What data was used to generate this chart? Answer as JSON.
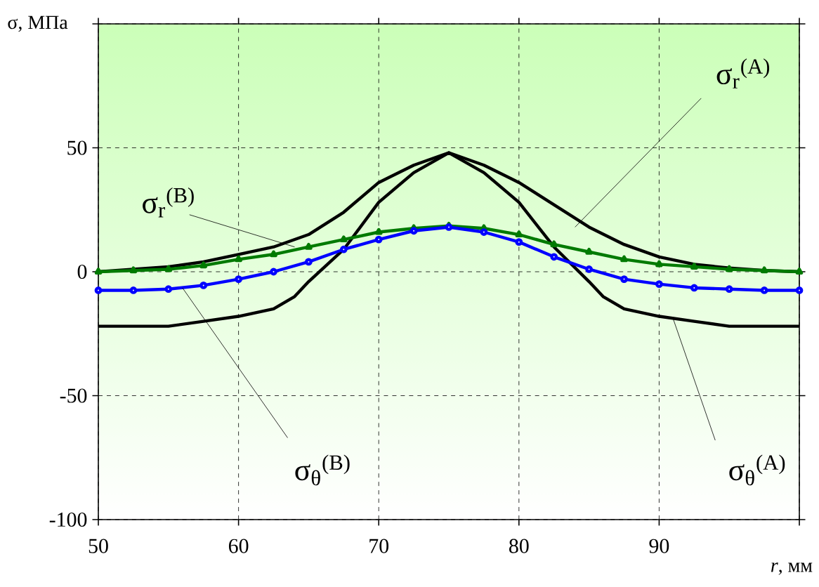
{
  "chart_data": {
    "type": "line",
    "xlabel": "*r*, мм",
    "ylabel": "σ, МПа",
    "xlim": [
      50,
      100
    ],
    "ylim": [
      -100,
      100
    ],
    "xticks": [
      50,
      60,
      70,
      80,
      90,
      {
        "value": 100,
        "label": null
      }
    ],
    "yticks": [
      -100,
      -50,
      0,
      50,
      {
        "value": 100,
        "label": null
      }
    ],
    "grid": true,
    "annotations": [
      {
        "text": "σ$_{r}$$^{(A)}$",
        "x": 84,
        "y": 18
      },
      {
        "text": "σ$_{θ}$$^{(A)}$",
        "x": 91,
        "y": -19
      },
      {
        "text": "σ$_{r}$$^{(B)}$",
        "x": 64,
        "y": 10
      },
      {
        "text": "σ$_{θ}$$^{(B)}$",
        "x": 56,
        "y": -6.5
      }
    ],
    "series": [
      {
        "color": "#000000",
        "marker": "none",
        "x": [
          50,
          52.5,
          55,
          57.5,
          60,
          62.5,
          65,
          67.5,
          70,
          72.5,
          75,
          77.5,
          80,
          82.5,
          85,
          87.5,
          90,
          92.5,
          95,
          97.5,
          100
        ],
        "values": [
          0,
          1,
          2,
          4,
          7,
          10,
          15,
          24,
          36,
          43,
          48,
          43,
          36,
          27,
          18,
          11,
          6,
          3,
          1.5,
          0.5,
          0
        ]
      },
      {
        "color": "#000000",
        "marker": "none",
        "x": [
          50,
          52.5,
          55,
          57.5,
          60,
          62.5,
          64,
          65,
          67.5,
          70,
          72.5,
          75,
          77.5,
          80,
          82.5,
          85,
          86,
          87.5,
          90,
          92.5,
          95,
          100
        ],
        "values": [
          -22,
          -22,
          -22,
          -20,
          -18,
          -15,
          -10,
          -4,
          9,
          28,
          40,
          48,
          40,
          28,
          10,
          -4,
          -10,
          -15,
          -18,
          -20,
          -22,
          -22
        ]
      },
      {
        "color": "#007a00",
        "marker": "triangle",
        "x": [
          50,
          52.5,
          55,
          57.5,
          60,
          62.5,
          65,
          67.5,
          70,
          72.5,
          75,
          77.5,
          80,
          82.5,
          85,
          87.5,
          90,
          92.5,
          95,
          97.5,
          100
        ],
        "values": [
          0,
          0.5,
          1,
          2.5,
          5,
          7,
          10,
          13,
          16,
          17.5,
          18.5,
          17.5,
          15,
          11,
          8,
          5,
          3,
          2,
          1,
          0.5,
          0
        ]
      },
      {
        "color": "#0000ff",
        "marker": "circle",
        "x": [
          50,
          52.5,
          55,
          57.5,
          60,
          62.5,
          65,
          67.5,
          70,
          72.5,
          75,
          77.5,
          80,
          82.5,
          85,
          87.5,
          90,
          92.5,
          95,
          97.5,
          100
        ],
        "values": [
          -7.5,
          -7.5,
          -7,
          -5.5,
          -3,
          0,
          4,
          9,
          13,
          16.5,
          18,
          16,
          12,
          6,
          1,
          -3,
          -5,
          -6.5,
          -7,
          -7.5,
          -7.5
        ]
      }
    ]
  }
}
